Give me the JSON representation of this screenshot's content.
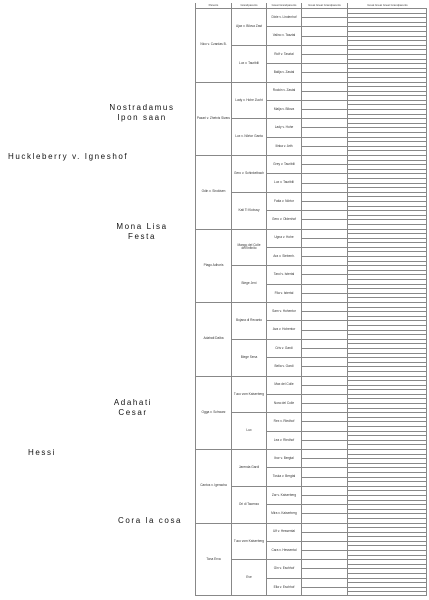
{
  "sire": {
    "name": "Huckleberry v. Igneshof",
    "sire": "Nostradamus Ipon saan",
    "dam": "Mona Lisa Festa"
  },
  "dam": {
    "name": "Hessi",
    "sire": "Adahati Cesar",
    "dam": "Cora la cosa"
  },
  "table": {
    "headers": [
      "Parents",
      "Grandparents",
      "Great Grandparents",
      "Great Great Grandparents",
      "Great Great Great Grandparents"
    ],
    "gen1": [
      "Nico v. Czardas B.",
      "Pazari v. Zhetvis Sivaru",
      "Odin v. Sirokisen",
      "Ptago Adhoris",
      "Adahati Dalba",
      "Ogga v. Schwarz",
      "Cantos v. Igeracha",
      "Tona Erva"
    ],
    "gen2": [
      "Ajax v. Bilova Zast",
      "Lux v. Tauribili",
      "Lady v. Hohe Zucht",
      "Lux v. Nörtor Ganta",
      "Gero v. Schinkelbach",
      "Kati Ti Klobusy",
      "Mango del Colle dell'Infinito",
      "Biege Jeni",
      "Bojana di Recanto",
      "Biege Sena",
      "Tuco vom Kaiserberg",
      "Lux",
      "Jarenda Gardi",
      "Ori di Tacenzo",
      "Tuco vom Kaiserberg",
      "Eve"
    ],
    "gen3": [
      "Dixie v. Lindenhof",
      "Valino v. Tasztal",
      "Rolf v. Tasztal",
      "Balija v. Zastal",
      "Rockin v. Zastal",
      "Malja v. Bilova",
      "Lady v. Hohe",
      "Ilinka v. Arth",
      "Grey v. Tauribili",
      "Lux v. Tauribili",
      "Fatia v. Nörtor",
      "Gero v. Oldenhof",
      "Ugna v. Hohe",
      "Ara v. Siebenh.",
      "Tarol v. Istertal",
      "Fila v. Istertal",
      "Sam v. Hohentor",
      "Ava v. Hohentor",
      "Cris v. Gardi",
      "Bella v. Gardi",
      "Max del Colle",
      "Nora del Colle",
      "Rex v. Riedhof",
      "Lea v. Riedhof",
      "Ibor v. Bergtal",
      "Toska v. Bergtal",
      "Zar v. Kaiserberg",
      "Mira v. Kaiserberg",
      "Ulf v. Hessental",
      "Cara v. Hessental",
      "Gin v. Eschhof",
      "Ella v. Eschhof"
    ]
  }
}
